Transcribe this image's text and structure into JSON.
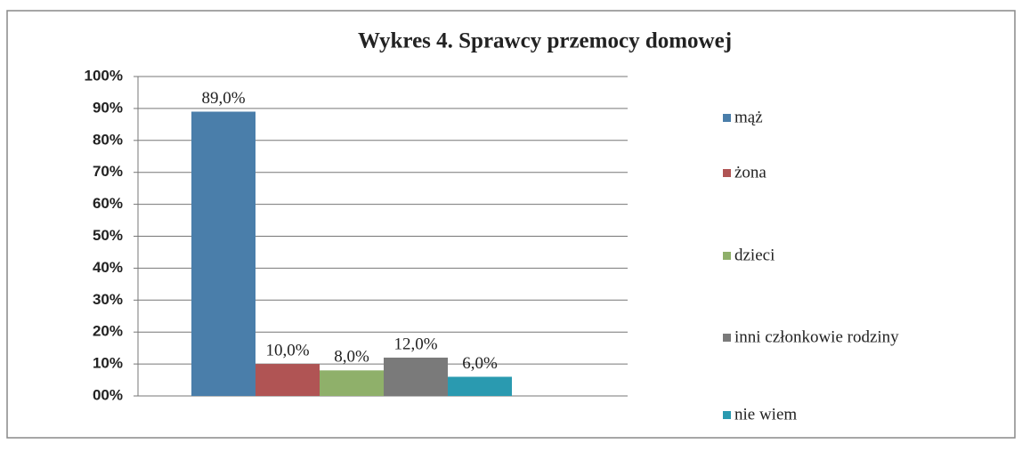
{
  "chart_data": {
    "type": "bar",
    "title": "Wykres 4. Sprawcy przemocy domowej",
    "series": [
      {
        "name": "mąż",
        "color": "#4a7eaa",
        "values": [
          89
        ],
        "value_labels": [
          "89,0%"
        ]
      },
      {
        "name": "żona",
        "color": "#b05454",
        "values": [
          10
        ],
        "value_labels": [
          "10,0%"
        ]
      },
      {
        "name": "dzieci",
        "color": "#8fb06a",
        "values": [
          8
        ],
        "value_labels": [
          "8,0%"
        ]
      },
      {
        "name": "inni członkowie rodziny",
        "color": "#7a7a7a",
        "values": [
          12
        ],
        "value_labels": [
          "12,0%"
        ]
      },
      {
        "name": "nie wiem",
        "color": "#2a9ab0",
        "values": [
          6
        ],
        "value_labels": [
          "6,0%"
        ]
      }
    ],
    "ylim": [
      0,
      100
    ],
    "yticks": [
      {
        "value": 0,
        "label": "00%"
      },
      {
        "value": 10,
        "label": "10%"
      },
      {
        "value": 20,
        "label": "20%"
      },
      {
        "value": 30,
        "label": "30%"
      },
      {
        "value": 40,
        "label": "40%"
      },
      {
        "value": 50,
        "label": "50%"
      },
      {
        "value": 60,
        "label": "60%"
      },
      {
        "value": 70,
        "label": "70%"
      },
      {
        "value": 80,
        "label": "80%"
      },
      {
        "value": 90,
        "label": "90%"
      },
      {
        "value": 100,
        "label": "100%"
      }
    ],
    "grid": true,
    "legend": "right"
  }
}
